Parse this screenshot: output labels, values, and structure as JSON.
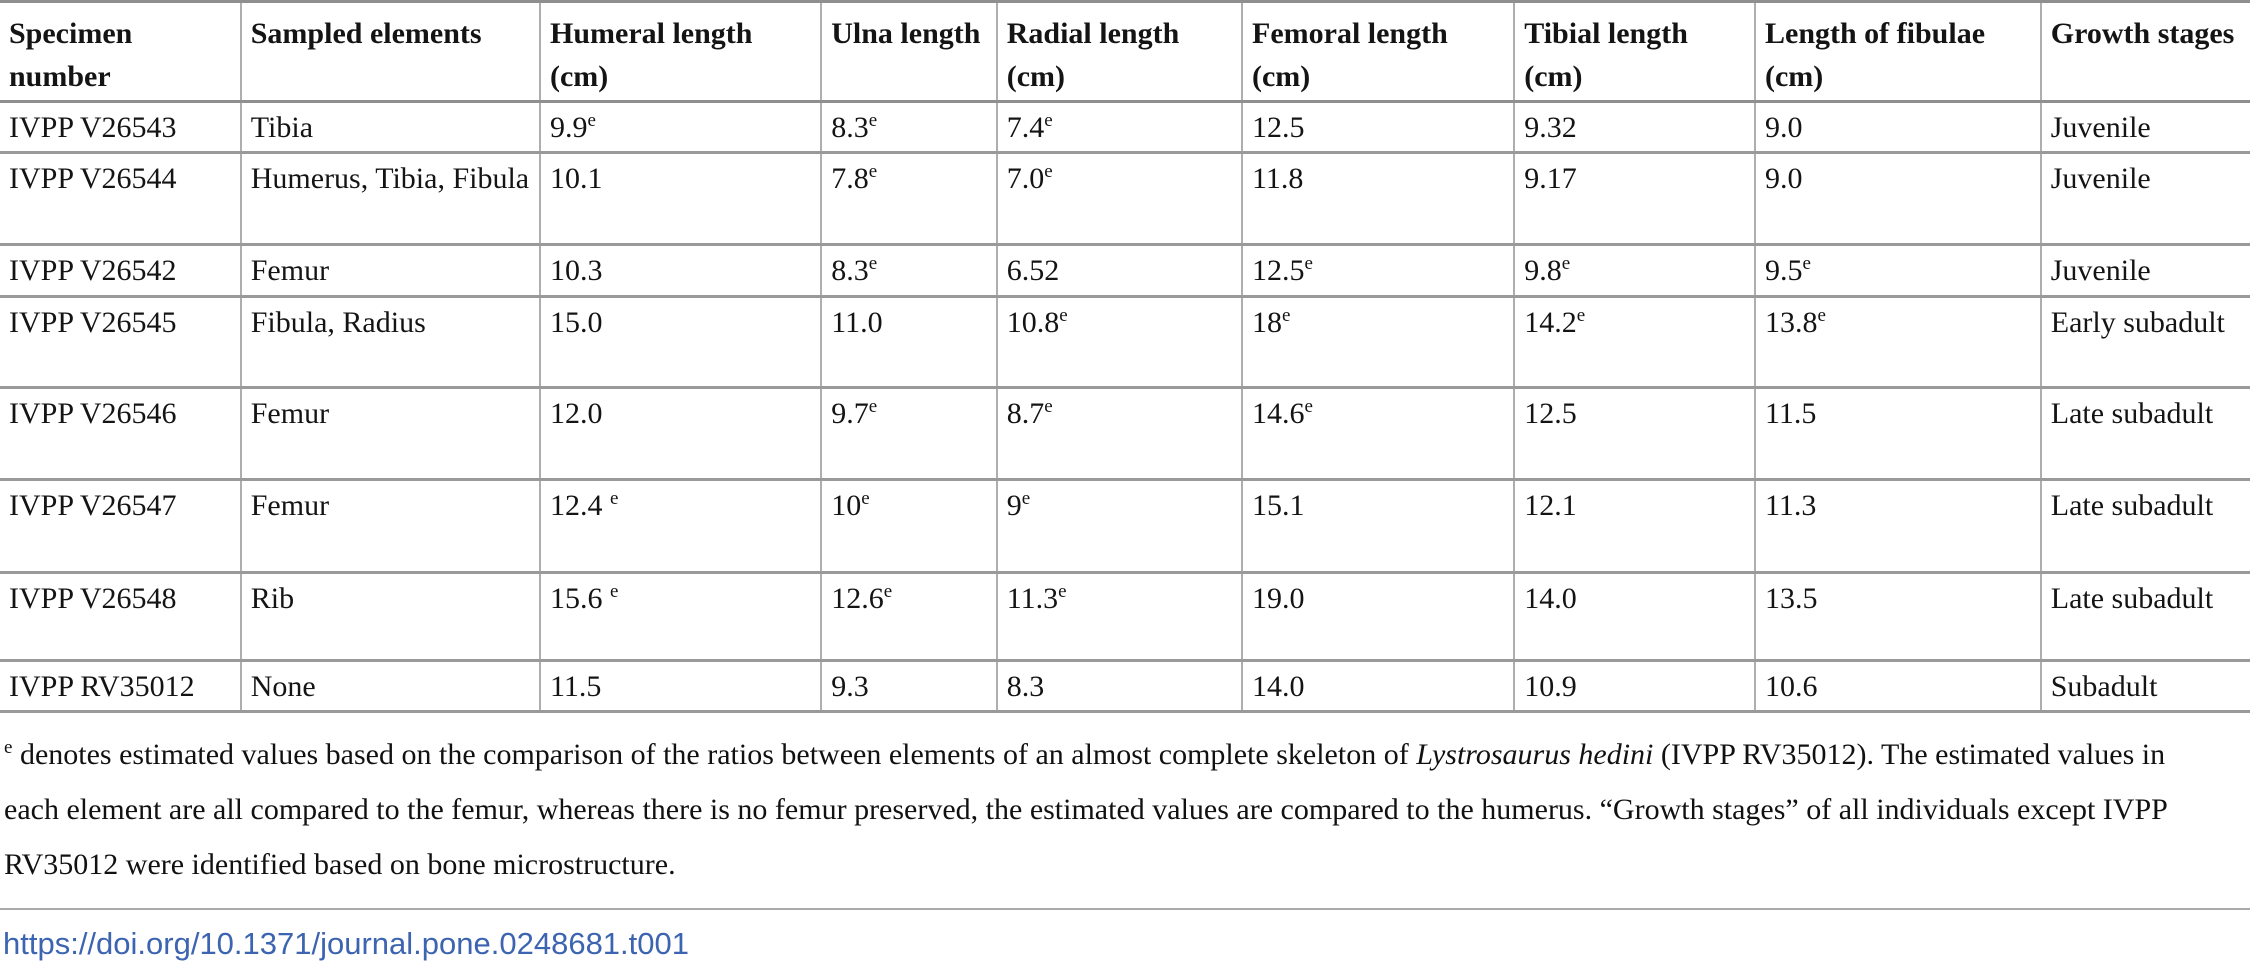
{
  "table": {
    "headers": [
      "Specimen number",
      "Sampled elements",
      "Humeral length (cm)",
      "Ulna length",
      "Radial length (cm)",
      "Femoral length (cm)",
      "Tibial length (cm)",
      "Length of fibulae (cm)",
      "Growth stages"
    ],
    "rows": [
      [
        {
          "t": "IVPP V26543"
        },
        {
          "t": "Tibia"
        },
        {
          "t": "9.9",
          "s": "e"
        },
        {
          "t": "8.3",
          "s": "e"
        },
        {
          "t": "7.4",
          "s": "e"
        },
        {
          "t": "12.5"
        },
        {
          "t": "9.32"
        },
        {
          "t": "9.0"
        },
        {
          "t": "Juvenile"
        }
      ],
      [
        {
          "t": "IVPP V26544"
        },
        {
          "t": "Humerus, Tibia, Fibula"
        },
        {
          "t": "10.1"
        },
        {
          "t": "7.8",
          "s": "e"
        },
        {
          "t": "7.0",
          "s": "e"
        },
        {
          "t": "11.8"
        },
        {
          "t": "9.17"
        },
        {
          "t": "9.0"
        },
        {
          "t": "Juvenile"
        }
      ],
      [
        {
          "t": "IVPP V26542"
        },
        {
          "t": "Femur"
        },
        {
          "t": "10.3"
        },
        {
          "t": "8.3",
          "s": "e"
        },
        {
          "t": "6.52"
        },
        {
          "t": "12.5",
          "s": "e"
        },
        {
          "t": "9.8",
          "s": "e"
        },
        {
          "t": "9.5",
          "s": "e"
        },
        {
          "t": "Juvenile"
        }
      ],
      [
        {
          "t": "IVPP V26545"
        },
        {
          "t": "Fibula, Radius"
        },
        {
          "t": "15.0"
        },
        {
          "t": "11.0"
        },
        {
          "t": "10.8",
          "s": "e"
        },
        {
          "t": "18",
          "s": "e"
        },
        {
          "t": "14.2",
          "s": "e"
        },
        {
          "t": "13.8",
          "s": "e"
        },
        {
          "t": "Early subadult"
        }
      ],
      [
        {
          "t": "IVPP V26546"
        },
        {
          "t": "Femur"
        },
        {
          "t": "12.0"
        },
        {
          "t": "9.7",
          "s": "e"
        },
        {
          "t": "8.7",
          "s": "e"
        },
        {
          "t": "14.6",
          "s": "e"
        },
        {
          "t": "12.5"
        },
        {
          "t": "11.5"
        },
        {
          "t": "Late subadult"
        }
      ],
      [
        {
          "t": "IVPP V26547"
        },
        {
          "t": "Femur"
        },
        {
          "t": "12.4 ",
          "s": "e"
        },
        {
          "t": "10",
          "s": "e"
        },
        {
          "t": "9",
          "s": "e"
        },
        {
          "t": "15.1"
        },
        {
          "t": "12.1"
        },
        {
          "t": "11.3"
        },
        {
          "t": "Late subadult"
        }
      ],
      [
        {
          "t": "IVPP V26548"
        },
        {
          "t": "Rib"
        },
        {
          "t": "15.6 ",
          "s": "e"
        },
        {
          "t": "12.6",
          "s": "e"
        },
        {
          "t": "11.3",
          "s": "e"
        },
        {
          "t": "19.0"
        },
        {
          "t": "14.0"
        },
        {
          "t": "13.5"
        },
        {
          "t": "Late subadult"
        }
      ],
      [
        {
          "t": "IVPP RV35012"
        },
        {
          "t": "None"
        },
        {
          "t": "11.5"
        },
        {
          "t": "9.3"
        },
        {
          "t": "8.3"
        },
        {
          "t": "14.0"
        },
        {
          "t": "10.9"
        },
        {
          "t": "10.6"
        },
        {
          "t": "Subadult"
        }
      ]
    ]
  },
  "footnote": {
    "marker": "e",
    "text_before_italic": " denotes estimated values based on the comparison of the ratios between elements of an almost complete skeleton of ",
    "italic": "Lystrosaurus hedini",
    "text_after_italic": " (IVPP RV35012). The estimated values in each element are all compared to the femur, whereas there is no femur preserved, the estimated values are compared to the humerus. “Growth stages” of all individuals except IVPP RV35012 were identified based on bone microstructure."
  },
  "doi_link": "https://doi.org/10.1371/journal.pone.0248681.t001",
  "colors": {
    "link_blue": "#3c64b0",
    "border_gray": "#9a9a9a",
    "text": "#141414"
  }
}
